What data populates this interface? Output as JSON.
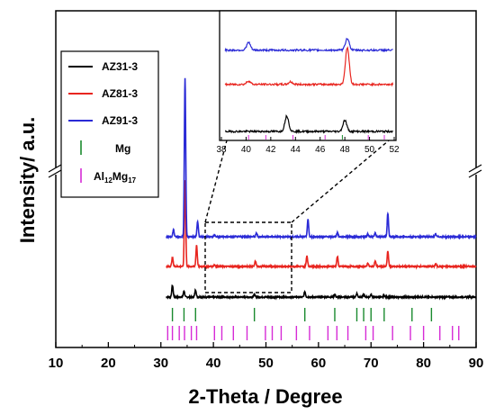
{
  "chart_data": {
    "type": "line",
    "xlabel": "2-Theta / Degree",
    "ylabel": "Intensity/ a.u.",
    "xlim": [
      10,
      90
    ],
    "xticks": [
      "10",
      "20",
      "30",
      "40",
      "50",
      "60",
      "70",
      "80",
      "90"
    ],
    "series": [
      {
        "name": "AZ31-3",
        "color": "#000000",
        "baseline": 0,
        "peaks": [
          [
            32.2,
            13
          ],
          [
            34.4,
            7
          ],
          [
            36.6,
            8
          ],
          [
            47.8,
            3
          ],
          [
            57.4,
            6
          ],
          [
            63.1,
            3
          ],
          [
            67.3,
            4
          ],
          [
            68.6,
            3
          ],
          [
            70.0,
            3
          ],
          [
            72.5,
            2
          ]
        ]
      },
      {
        "name": "AZ81-3",
        "color": "#e8251f",
        "baseline": 34,
        "peaks": [
          [
            32.2,
            10
          ],
          [
            34.6,
            96
          ],
          [
            36.8,
            24
          ],
          [
            40.2,
            2
          ],
          [
            48.0,
            6
          ],
          [
            57.8,
            12
          ],
          [
            63.6,
            11
          ],
          [
            69.4,
            4
          ],
          [
            70.8,
            6
          ],
          [
            73.2,
            17
          ],
          [
            82.3,
            3
          ]
        ]
      },
      {
        "name": "AZ91-3",
        "color": "#2a2ad6",
        "baseline": 67,
        "peaks": [
          [
            32.4,
            8
          ],
          [
            34.6,
            176
          ],
          [
            37.0,
            17
          ],
          [
            40.2,
            2
          ],
          [
            48.2,
            4
          ],
          [
            58.0,
            19
          ],
          [
            63.6,
            5
          ],
          [
            69.4,
            3
          ],
          [
            70.8,
            4
          ],
          [
            73.2,
            26
          ],
          [
            82.3,
            3
          ]
        ]
      }
    ],
    "reference_markers": [
      {
        "name": "Mg",
        "color": "#1a8a2e",
        "positions": [
          32.2,
          34.4,
          36.6,
          47.8,
          57.4,
          63.1,
          67.3,
          68.6,
          70.0,
          72.5,
          77.8,
          81.5
        ]
      },
      {
        "name": "Al12Mg17",
        "color": "#d62bd6",
        "positions": [
          31.3,
          32.2,
          33.5,
          34.5,
          35.8,
          36.8,
          40.2,
          41.6,
          43.8,
          46.4,
          49.9,
          51.2,
          52.9,
          55.8,
          58.3,
          61.8,
          63.5,
          65.6,
          69.0,
          70.4,
          74.1,
          77.5,
          80.0,
          83.1,
          85.5,
          86.7
        ]
      }
    ],
    "inset": {
      "xlim": [
        38,
        52
      ],
      "xticks": [
        "38",
        "40",
        "42",
        "44",
        "46",
        "48",
        "50",
        "52"
      ],
      "series": [
        {
          "name": "AZ31-3",
          "baseline": 0,
          "peaks": [
            [
              43.3,
              18
            ],
            [
              48.0,
              13
            ]
          ]
        },
        {
          "name": "AZ81-3",
          "baseline": 55,
          "peaks": [
            [
              40.2,
              4
            ],
            [
              43.6,
              3
            ],
            [
              48.2,
              43
            ]
          ]
        },
        {
          "name": "AZ91-3",
          "baseline": 95,
          "peaks": [
            [
              40.2,
              9
            ],
            [
              48.2,
              14
            ]
          ]
        }
      ]
    }
  },
  "legend": {
    "entries": [
      {
        "label": "AZ31-3",
        "color": "#000000",
        "kind": "line"
      },
      {
        "label": "AZ81-3",
        "color": "#e8251f",
        "kind": "line"
      },
      {
        "label": "AZ91-3",
        "color": "#2a2ad6",
        "kind": "line"
      },
      {
        "label": "Mg",
        "color": "#1a8a2e",
        "kind": "marker"
      },
      {
        "label_base": "Al",
        "sub1": "12",
        "label_mid": "Mg",
        "sub2": "17",
        "color": "#d62bd6",
        "kind": "marker"
      }
    ]
  }
}
